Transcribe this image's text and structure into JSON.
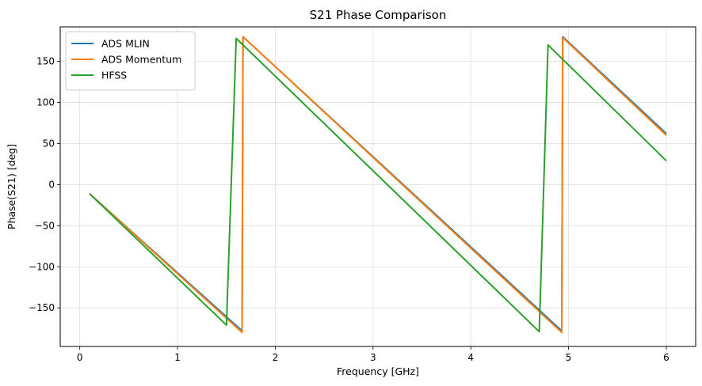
{
  "chart_data": {
    "type": "line",
    "title": "S21 Phase Comparison",
    "xlabel": "Frequency [GHz]",
    "ylabel": "Phase(S21) [deg]",
    "xlim": [
      -0.2,
      6.3
    ],
    "ylim": [
      -197,
      192
    ],
    "xticks": [
      0,
      1,
      2,
      3,
      4,
      5,
      6
    ],
    "yticks": [
      -150,
      -100,
      -50,
      0,
      50,
      100,
      150
    ],
    "xtick_labels": [
      "0",
      "1",
      "2",
      "3",
      "4",
      "5",
      "6"
    ],
    "ytick_labels": [
      "−150",
      "−100",
      "−50",
      "0",
      "50",
      "100",
      "150"
    ],
    "grid": true,
    "legend_position": "top-left",
    "series": [
      {
        "name": "ADS MLIN",
        "color": "#1f77b4",
        "points": [
          [
            0.1,
            -11
          ],
          [
            1.66,
            -178
          ],
          [
            1.67,
            180
          ],
          [
            4.93,
            -178
          ],
          [
            4.94,
            180
          ],
          [
            6.0,
            62
          ]
        ]
      },
      {
        "name": "ADS Momentum",
        "color": "#ff7f0e",
        "points": [
          [
            0.1,
            -11
          ],
          [
            1.66,
            -180
          ],
          [
            1.67,
            180
          ],
          [
            4.93,
            -180
          ],
          [
            4.94,
            179
          ],
          [
            6.0,
            60
          ]
        ]
      },
      {
        "name": "HFSS",
        "color": "#2ca02c",
        "points": [
          [
            0.1,
            -11
          ],
          [
            1.5,
            -171
          ],
          [
            1.6,
            178
          ],
          [
            4.7,
            -179
          ],
          [
            4.79,
            170
          ],
          [
            6.0,
            29
          ]
        ]
      }
    ]
  }
}
